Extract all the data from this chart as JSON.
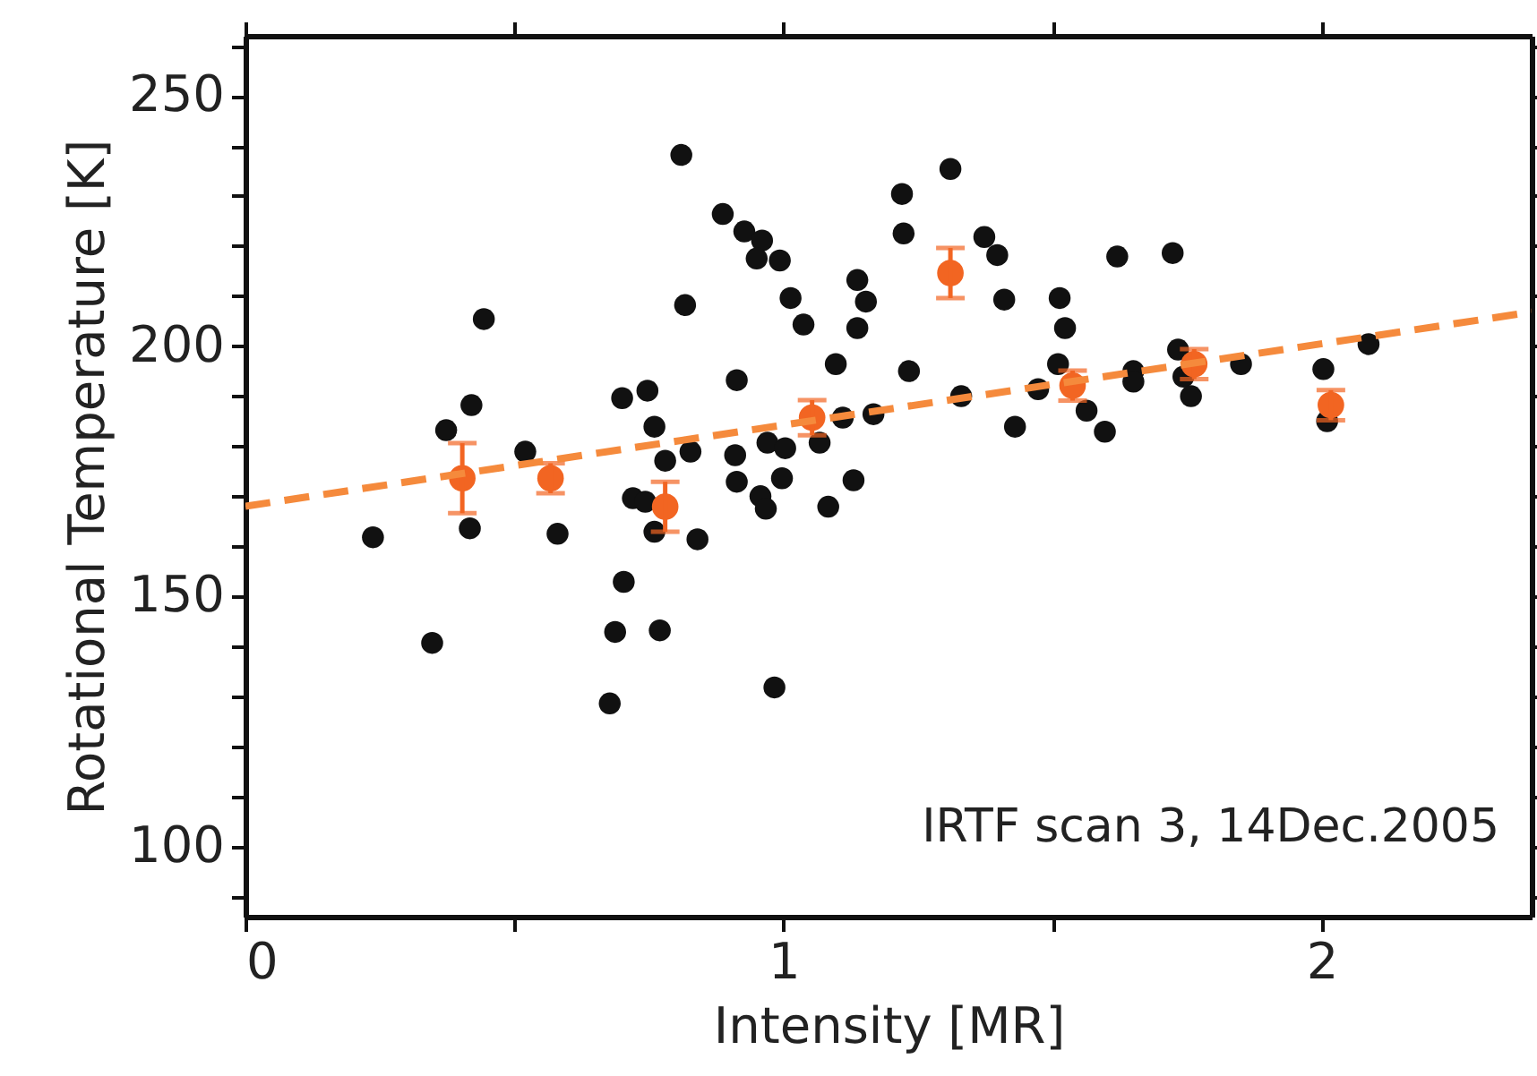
{
  "chart_data": {
    "type": "scatter",
    "xlabel": "Intensity [MR]",
    "ylabel": "Rotational Temperature [K]",
    "xlim": [
      0,
      2.39
    ],
    "ylim": [
      86,
      262
    ],
    "xticks": [
      0,
      {
        "value": 0.5,
        "label": null
      },
      1,
      {
        "value": 1.5,
        "label": null
      },
      2
    ],
    "yticks": [
      {
        "value": 90,
        "label": null
      },
      100,
      {
        "value": 110,
        "label": null
      },
      {
        "value": 120,
        "label": null
      },
      {
        "value": 130,
        "label": null
      },
      {
        "value": 140,
        "label": null
      },
      150,
      {
        "value": 160,
        "label": null
      },
      {
        "value": 170,
        "label": null
      },
      {
        "value": 180,
        "label": null
      },
      {
        "value": 190,
        "label": null
      },
      200,
      {
        "value": 210,
        "label": null
      },
      {
        "value": 220,
        "label": null
      },
      {
        "value": 230,
        "label": null
      },
      {
        "value": 240,
        "label": null
      },
      250,
      {
        "value": 260,
        "label": null
      }
    ],
    "grid": false,
    "marker": "circle",
    "annotations": [
      "IRTF scan 3, 14Dec.2005"
    ],
    "series": [
      {
        "color": "#111111",
        "x": [
          0.237,
          0.347,
          0.373,
          0.42,
          0.443,
          0.417,
          0.52,
          0.58,
          0.677,
          0.687,
          0.703,
          0.7,
          0.747,
          0.76,
          0.77,
          0.72,
          0.743,
          0.76,
          0.81,
          0.817,
          0.887,
          0.927,
          0.96,
          0.95,
          0.993,
          1.013,
          1.037,
          0.913,
          0.78,
          0.827,
          0.84,
          0.91,
          0.913,
          0.957,
          0.967,
          0.997,
          0.97,
          1.003,
          1.067,
          1.083,
          1.097,
          1.11,
          1.13,
          1.167,
          1.137,
          1.153,
          1.137,
          1.22,
          1.223,
          1.31,
          1.233,
          1.33,
          1.373,
          1.397,
          1.41,
          1.43,
          1.513,
          1.523,
          1.51,
          1.473,
          0.983,
          1.563,
          1.597,
          1.62,
          1.723,
          1.65,
          1.65,
          1.733,
          1.743,
          1.757,
          1.85,
          2.003,
          2.01,
          2.087
        ],
        "values": [
          161.8,
          140.7,
          183.2,
          188.2,
          205.4,
          163.6,
          178.9,
          162.5,
          128.6,
          142.9,
          152.9,
          189.6,
          191.1,
          183.9,
          143.2,
          169.6,
          168.9,
          162.9,
          238.2,
          208.2,
          226.4,
          222.9,
          221.1,
          217.5,
          217.1,
          209.6,
          204.3,
          193.2,
          177.1,
          178.9,
          161.4,
          178.2,
          172.9,
          170,
          167.5,
          173.6,
          180.7,
          179.6,
          180.7,
          167.9,
          196.4,
          185.7,
          173.2,
          186.4,
          213.2,
          208.9,
          203.6,
          230.4,
          222.5,
          235.4,
          195,
          190,
          221.8,
          218.2,
          209.3,
          183.9,
          209.6,
          203.6,
          196.4,
          191.4,
          131.8,
          187.1,
          182.9,
          217.9,
          218.6,
          195,
          192.9,
          199.3,
          193.9,
          190,
          196.4,
          195.4,
          185,
          200.4
        ]
      },
      {
        "color": "#f26522",
        "x": [
          0.403,
          0.567,
          0.78,
          1.053,
          1.31,
          1.537,
          1.763,
          2.017
        ],
        "values": [
          173.6,
          173.6,
          167.9,
          185.7,
          214.6,
          192.1,
          196.4,
          188.2
        ],
        "errors": [
          7,
          3,
          5,
          3.5,
          5,
          3,
          3,
          3
        ]
      },
      {
        "type": "line",
        "color": "#f58a3c",
        "line_style": "dashed",
        "marker": "none",
        "x": [
          0,
          2.39
        ],
        "values": [
          168,
          206.8
        ]
      }
    ]
  }
}
